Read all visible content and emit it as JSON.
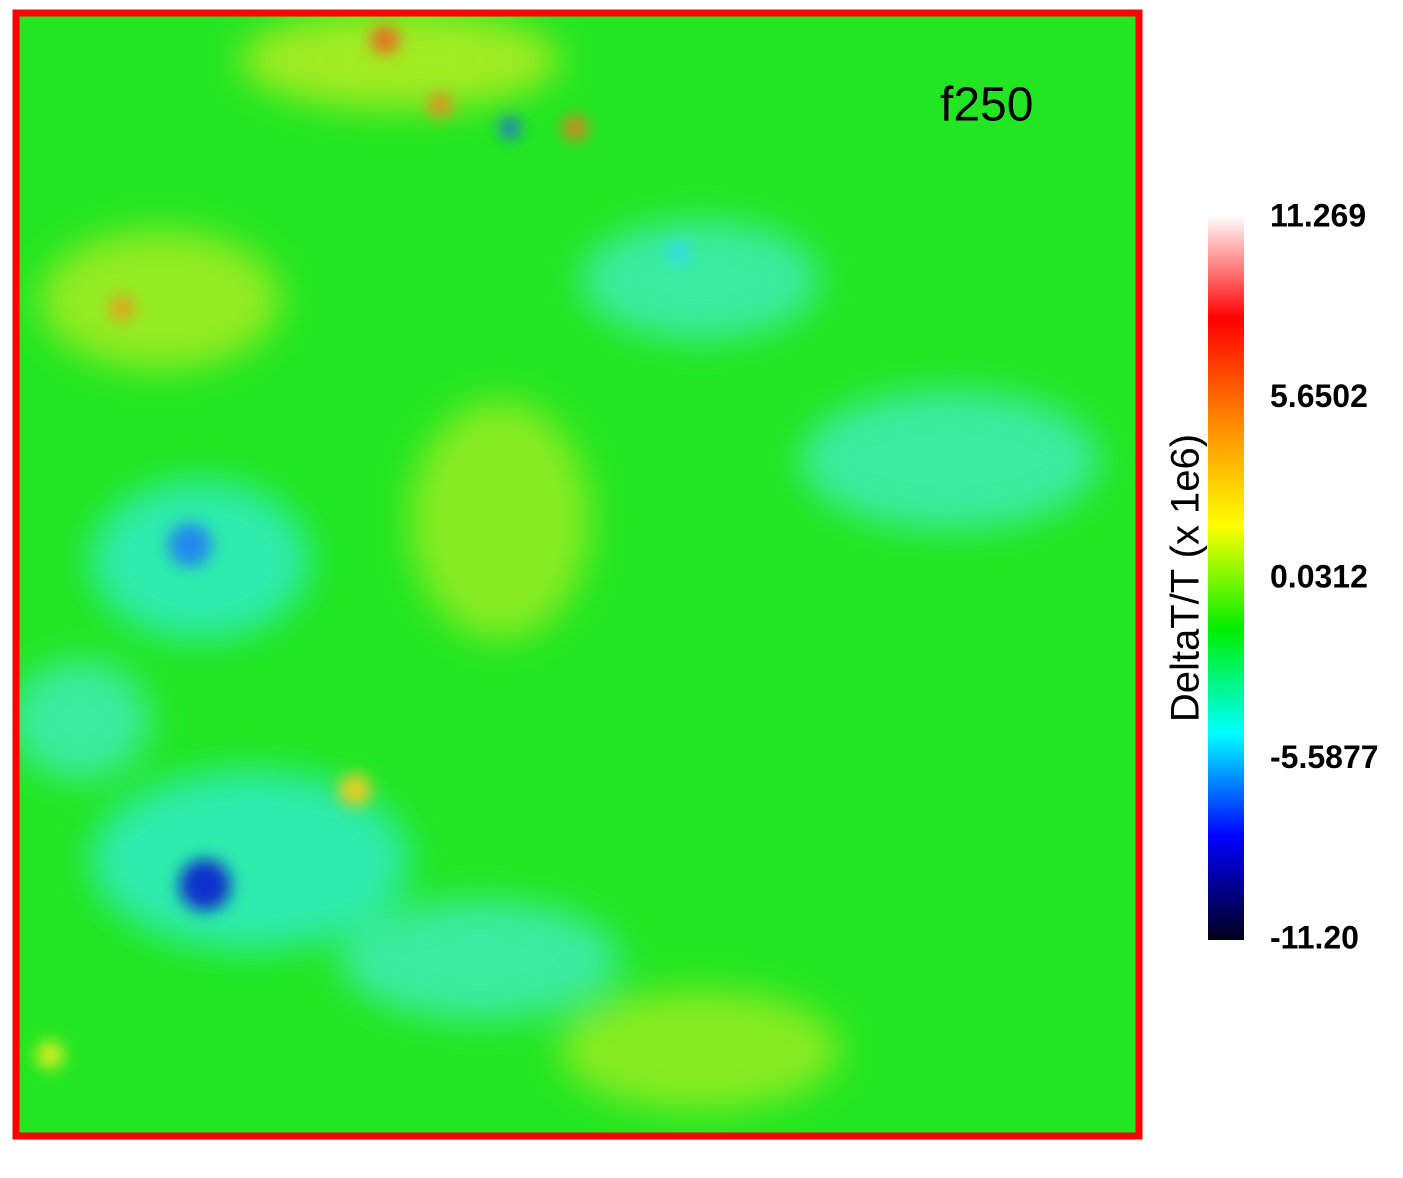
{
  "chart_data": {
    "type": "heatmap",
    "label": "f250",
    "colorbar": {
      "title": "DeltaT/T (x 1e6)",
      "lim": [
        -11.2,
        11.269
      ],
      "ticks": [
        11.269,
        5.6502,
        0.0312,
        -5.5877,
        {
          "value": -11.2,
          "label": "-11.20"
        }
      ],
      "colors": [
        "#00001a",
        "#0000ff",
        "#00ffff",
        "#00ee00",
        "#ffff00",
        "#ff8800",
        "#ff0000",
        "#ffffff"
      ]
    }
  }
}
